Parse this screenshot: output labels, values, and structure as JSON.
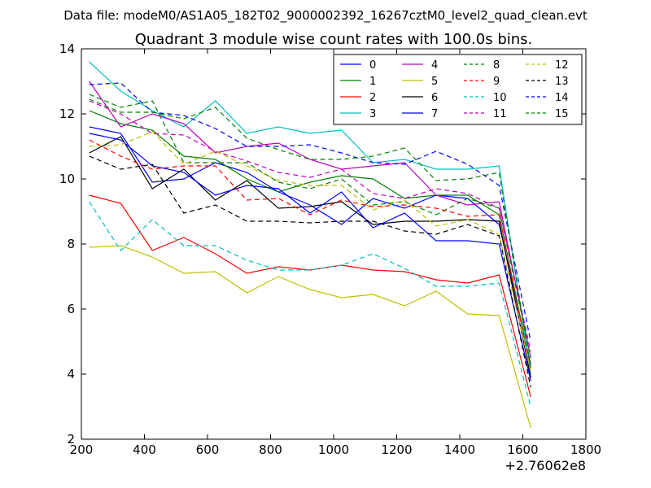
{
  "chart_data": {
    "type": "line",
    "suptitle": "Data file: modeM0/AS1A05_182T02_9000002392_16267cztM0_level2_quad_clean.evt",
    "title": "Quadrant 3 module wise count rates with 100.0s bins.",
    "xlabel": "",
    "ylabel": "",
    "x_offset_label": "+2.76062e8",
    "xlim": [
      200,
      1800
    ],
    "ylim": [
      2,
      14
    ],
    "xticks": [
      200,
      400,
      600,
      800,
      1000,
      1200,
      1400,
      1600,
      1800
    ],
    "yticks": [
      2,
      4,
      6,
      8,
      10,
      12,
      14
    ],
    "grid": false,
    "legend_position": "top-right",
    "legend_columns": 4,
    "x": [
      225,
      325,
      425,
      525,
      625,
      725,
      825,
      925,
      1025,
      1125,
      1225,
      1325,
      1425,
      1525,
      1625
    ],
    "series": [
      {
        "name": "0",
        "color": "#0000ff",
        "style": "solid",
        "values": [
          11.6,
          11.4,
          9.9,
          10.0,
          10.5,
          10.2,
          9.6,
          9.2,
          8.6,
          9.4,
          9.1,
          9.5,
          9.4,
          8.6,
          4.3
        ]
      },
      {
        "name": "1",
        "color": "#008000",
        "style": "solid",
        "values": [
          12.1,
          11.7,
          11.5,
          10.7,
          10.6,
          10.0,
          9.6,
          9.9,
          10.1,
          10.0,
          9.4,
          9.5,
          9.5,
          8.9,
          4.2
        ]
      },
      {
        "name": "2",
        "color": "#ff0000",
        "style": "solid",
        "values": [
          9.5,
          9.25,
          7.8,
          8.2,
          7.7,
          7.1,
          7.3,
          7.2,
          7.35,
          7.2,
          7.15,
          6.9,
          6.8,
          7.05,
          3.3
        ]
      },
      {
        "name": "3",
        "color": "#00bfbf",
        "style": "solid",
        "values": [
          13.6,
          12.7,
          12.1,
          11.6,
          12.4,
          11.4,
          11.6,
          11.4,
          11.5,
          10.5,
          10.6,
          10.3,
          10.3,
          10.4,
          4.0
        ]
      },
      {
        "name": "4",
        "color": "#bf00bf",
        "style": "solid",
        "values": [
          13.0,
          11.6,
          12.0,
          11.7,
          10.8,
          11.0,
          11.1,
          10.6,
          10.3,
          10.4,
          10.5,
          9.5,
          9.2,
          9.3,
          4.5
        ]
      },
      {
        "name": "5",
        "color": "#bfbf00",
        "style": "solid",
        "values": [
          7.9,
          7.95,
          7.6,
          7.1,
          7.15,
          6.5,
          7.0,
          6.6,
          6.35,
          6.45,
          6.1,
          6.55,
          5.85,
          5.8,
          2.35
        ]
      },
      {
        "name": "6",
        "color": "#000000",
        "style": "solid",
        "values": [
          10.8,
          11.3,
          9.7,
          10.3,
          9.35,
          9.95,
          9.1,
          9.15,
          9.3,
          8.6,
          8.7,
          8.7,
          8.75,
          8.7,
          3.9
        ]
      },
      {
        "name": "7",
        "color": "#0000ff",
        "style": "solid",
        "values": [
          11.4,
          11.2,
          10.4,
          10.2,
          9.5,
          9.8,
          9.7,
          8.95,
          9.6,
          8.5,
          8.95,
          8.1,
          8.1,
          8.0,
          3.8
        ]
      },
      {
        "name": "8",
        "color": "#008000",
        "style": "dashed",
        "values": [
          12.6,
          12.2,
          12.4,
          10.5,
          10.5,
          10.5,
          9.9,
          9.7,
          10.0,
          9.2,
          9.3,
          8.9,
          9.4,
          9.1,
          4.5
        ]
      },
      {
        "name": "9",
        "color": "#ff0000",
        "style": "dashed",
        "values": [
          11.2,
          10.7,
          10.3,
          10.4,
          10.4,
          9.35,
          9.4,
          8.9,
          9.35,
          9.15,
          9.2,
          9.1,
          8.85,
          8.9,
          4.1
        ]
      },
      {
        "name": "10",
        "color": "#00bfbf",
        "style": "dashed",
        "values": [
          9.3,
          7.8,
          8.75,
          7.95,
          7.95,
          7.5,
          7.2,
          7.2,
          7.35,
          7.7,
          7.25,
          6.7,
          6.7,
          6.8,
          3.0
        ]
      },
      {
        "name": "11",
        "color": "#bf00bf",
        "style": "dashed",
        "values": [
          12.4,
          12.0,
          11.4,
          11.35,
          10.85,
          10.55,
          10.2,
          10.05,
          10.3,
          9.55,
          9.4,
          9.7,
          9.55,
          9.1,
          4.7
        ]
      },
      {
        "name": "12",
        "color": "#bfbf00",
        "style": "dashed",
        "values": [
          11.0,
          11.05,
          11.45,
          10.45,
          10.85,
          10.4,
          9.95,
          9.8,
          9.8,
          9.05,
          9.35,
          8.55,
          8.75,
          8.3,
          4.1
        ]
      },
      {
        "name": "13",
        "color": "#000000",
        "style": "dashed",
        "values": [
          10.7,
          10.3,
          10.45,
          8.95,
          9.2,
          8.7,
          8.7,
          8.65,
          8.7,
          8.7,
          8.4,
          8.3,
          8.6,
          8.25,
          3.6
        ]
      },
      {
        "name": "14",
        "color": "#0000ff",
        "style": "dashed",
        "values": [
          12.9,
          12.95,
          12.05,
          11.95,
          11.55,
          11.0,
          11.0,
          11.05,
          10.8,
          10.5,
          10.45,
          10.85,
          10.45,
          9.8,
          5.0
        ]
      },
      {
        "name": "15",
        "color": "#008000",
        "style": "dashed",
        "values": [
          12.45,
          12.05,
          12.05,
          11.85,
          12.2,
          11.25,
          10.9,
          10.6,
          10.6,
          10.7,
          10.95,
          9.95,
          10.0,
          10.2,
          4.2
        ]
      }
    ]
  }
}
